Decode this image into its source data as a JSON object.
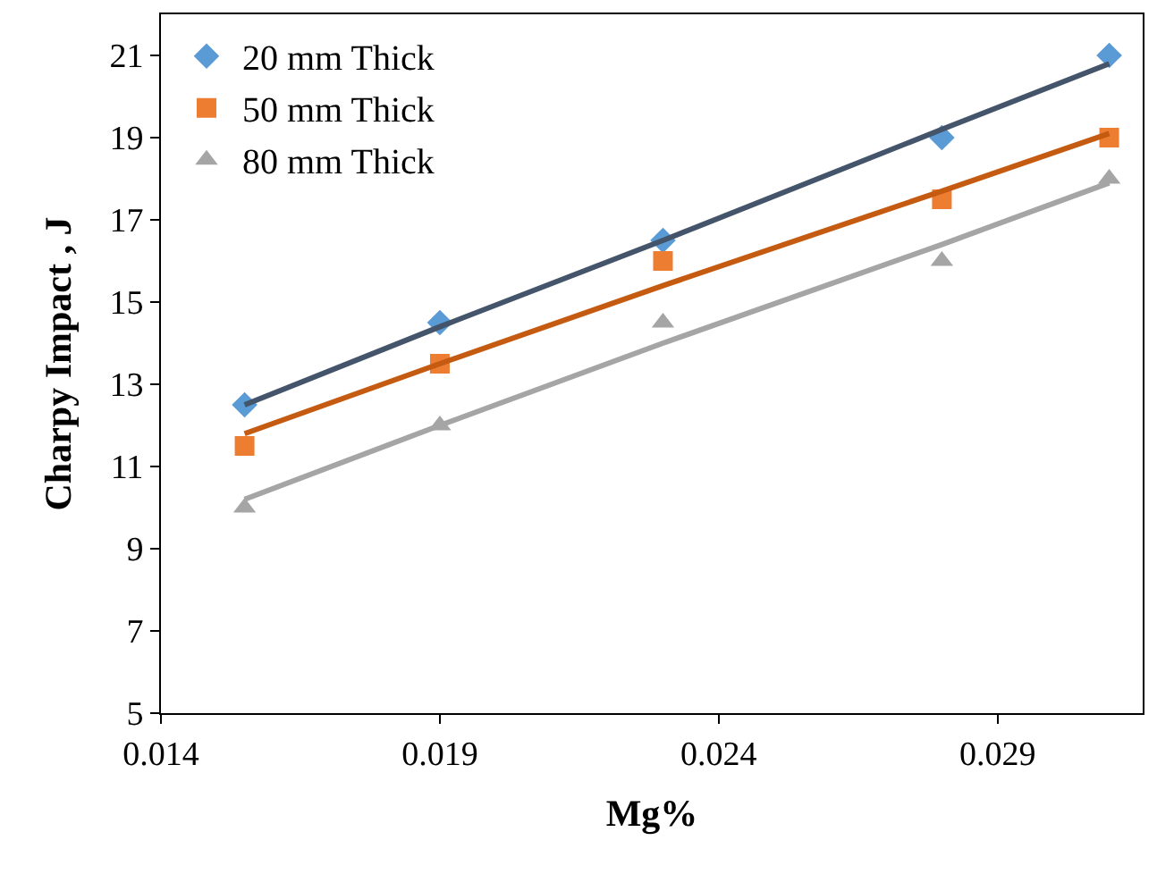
{
  "chart_data": {
    "type": "scatter",
    "xlabel": "Mg%",
    "ylabel": "Charpy Impact , J",
    "x": [
      0.0155,
      0.019,
      0.023,
      0.028,
      0.031
    ],
    "series": [
      {
        "name": "20 mm Thick",
        "color": "#5b9bd5",
        "marker": "diamond",
        "values": [
          12.5,
          14.5,
          16.5,
          19,
          21
        ]
      },
      {
        "name": "50 mm Thick",
        "color": "#ed7d31",
        "marker": "square",
        "values": [
          11.5,
          13.5,
          16,
          17.5,
          19
        ]
      },
      {
        "name": "80 mm Thick",
        "color": "#a5a5a5",
        "marker": "triangle",
        "values": [
          10,
          12,
          14.5,
          16,
          18
        ]
      },
      {
        "type": "line",
        "color": "#44546a",
        "marker": "none",
        "values": [
          12.5,
          14.4,
          16.5,
          19.2,
          20.8
        ]
      },
      {
        "type": "line",
        "color": "#c55a11",
        "marker": "none",
        "values": [
          11.8,
          13.5,
          15.4,
          17.7,
          19.1
        ]
      },
      {
        "type": "line",
        "color": "#a5a5a5",
        "marker": "none",
        "values": [
          10.2,
          12.0,
          14.0,
          16.4,
          17.9
        ]
      }
    ],
    "xlim": [
      0.014,
      0.0316
    ],
    "xticks": [
      0.014,
      0.019,
      0.024,
      0.029
    ],
    "ylim": [
      5,
      22
    ],
    "yticks": [
      5,
      7,
      9,
      11,
      13,
      15,
      17,
      19,
      21
    ],
    "legend": "top left"
  }
}
